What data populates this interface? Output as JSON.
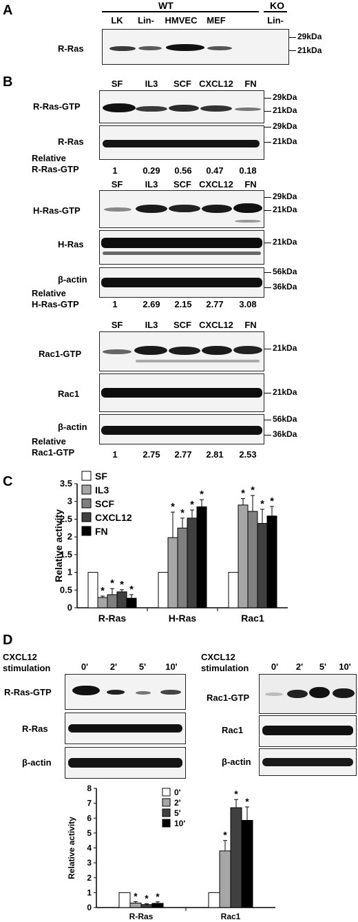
{
  "panel_a": {
    "letter": "A",
    "wt_label": "WT",
    "ko_label": "KO",
    "lanes": [
      "LK",
      "Lin-",
      "HMVEC",
      "MEF",
      "Lin-"
    ],
    "row_label": "R-Ras",
    "mw": [
      "29kDa",
      "21kDa"
    ]
  },
  "panel_b": {
    "letter": "B",
    "lanes": [
      "SF",
      "IL3",
      "SCF",
      "CXCL12",
      "FN"
    ],
    "block1": {
      "rows": [
        "R-Ras-GTP",
        "R-Ras"
      ],
      "mw_gtp": [
        "29kDa",
        "21kDa"
      ],
      "mw_total": [
        "29kDa",
        "21kDa"
      ],
      "relative_label_1": "Relative",
      "relative_label_2": "R-Ras-GTP",
      "values": [
        "1",
        "0.29",
        "0.56",
        "0.47",
        "0.18"
      ]
    },
    "block2": {
      "rows": [
        "H-Ras-GTP",
        "H-Ras",
        "β-actin"
      ],
      "mw_gtp": [
        "29kDa",
        "21kDa"
      ],
      "mw_total": [
        "21kDa"
      ],
      "mw_actin": [
        "56kDa",
        "36kDa"
      ],
      "relative_label_1": "Relative",
      "relative_label_2": "H-Ras-GTP",
      "values": [
        "1",
        "2.69",
        "2.15",
        "2.77",
        "3.08"
      ]
    },
    "block3": {
      "rows": [
        "Rac1-GTP",
        "Rac1",
        "β-actin"
      ],
      "mw_gtp": [
        "21kDa"
      ],
      "mw_total": [
        "21kDa"
      ],
      "mw_actin": [
        "56kDa",
        "36kDa"
      ],
      "relative_label_1": "Relative",
      "relative_label_2": "Rac1-GTP",
      "values": [
        "1",
        "2.75",
        "2.77",
        "2.81",
        "2.53"
      ]
    }
  },
  "panel_c": {
    "letter": "C"
  },
  "panel_d": {
    "letter": "D",
    "stim_label_1": "CXCL12",
    "stim_label_2": "stimulation",
    "times": [
      "0'",
      "2'",
      "5'",
      "10'"
    ],
    "left_rows": [
      "R-Ras-GTP",
      "R-Ras",
      "β-actin"
    ],
    "right_rows": [
      "Rac1-GTP",
      "Rac1",
      "β-actin"
    ]
  },
  "chart_data": [
    {
      "panel": "C",
      "type": "bar",
      "categories": [
        "R-Ras",
        "H-Ras",
        "Rac1"
      ],
      "ylabel": "Relative activity",
      "ylim": [
        0,
        3.5
      ],
      "yticks": [
        "0",
        "0.5",
        "1",
        "1.5",
        "2",
        "2.5",
        "3",
        "3.5"
      ],
      "legend_position": "top-left",
      "series": [
        {
          "name": "SF",
          "values": [
            1.0,
            1.0,
            1.0
          ],
          "errors": [
            0,
            0,
            0
          ],
          "color": "#ffffff"
        },
        {
          "name": "IL3",
          "values": [
            0.29,
            1.98,
            2.9
          ],
          "errors": [
            0.04,
            0.72,
            0.18
          ],
          "color": "#a6a6a6"
        },
        {
          "name": "SCF",
          "values": [
            0.37,
            2.25,
            2.72
          ],
          "errors": [
            0.17,
            0.28,
            0.45
          ],
          "color": "#7f7f7f"
        },
        {
          "name": "CXCL12",
          "values": [
            0.45,
            2.53,
            2.38
          ],
          "errors": [
            0.06,
            0.23,
            0.4
          ],
          "color": "#404040"
        },
        {
          "name": "FN",
          "values": [
            0.27,
            2.85,
            2.59
          ],
          "errors": [
            0.1,
            0.2,
            0.27
          ],
          "color": "#000000"
        }
      ],
      "annotations": [
        {
          "series": 1,
          "category": 0,
          "text": "*"
        },
        {
          "series": 2,
          "category": 0,
          "text": "*"
        },
        {
          "series": 3,
          "category": 0,
          "text": "*"
        },
        {
          "series": 4,
          "category": 0,
          "text": "*"
        },
        {
          "series": 1,
          "category": 1,
          "text": "*"
        },
        {
          "series": 2,
          "category": 1,
          "text": "*"
        },
        {
          "series": 3,
          "category": 1,
          "text": "*"
        },
        {
          "series": 4,
          "category": 1,
          "text": "*"
        },
        {
          "series": 1,
          "category": 2,
          "text": "*"
        },
        {
          "series": 2,
          "category": 2,
          "text": "*"
        },
        {
          "series": 3,
          "category": 2,
          "text": "*"
        },
        {
          "series": 4,
          "category": 2,
          "text": "*"
        }
      ]
    },
    {
      "panel": "D",
      "type": "bar",
      "categories": [
        "R-Ras",
        "Rac1"
      ],
      "ylabel": "Relative activity",
      "ylim": [
        0,
        8
      ],
      "yticks": [
        "0",
        "1",
        "2",
        "3",
        "4",
        "5",
        "6",
        "7",
        "8"
      ],
      "legend_position": "top-center",
      "series": [
        {
          "name": "0'",
          "values": [
            1.0,
            1.0
          ],
          "errors": [
            0,
            0
          ],
          "color": "#ffffff"
        },
        {
          "name": "2'",
          "values": [
            0.3,
            3.8
          ],
          "errors": [
            0.1,
            0.7
          ],
          "color": "#a6a6a6"
        },
        {
          "name": "5'",
          "values": [
            0.2,
            6.7
          ],
          "errors": [
            0.06,
            0.55
          ],
          "color": "#404040"
        },
        {
          "name": "10'",
          "values": [
            0.28,
            5.85
          ],
          "errors": [
            0.1,
            0.9
          ],
          "color": "#000000"
        }
      ],
      "annotations": [
        {
          "series": 1,
          "category": 0,
          "text": "*"
        },
        {
          "series": 2,
          "category": 0,
          "text": "*"
        },
        {
          "series": 3,
          "category": 0,
          "text": "*"
        },
        {
          "series": 1,
          "category": 1,
          "text": "*"
        },
        {
          "series": 2,
          "category": 1,
          "text": "*"
        },
        {
          "series": 3,
          "category": 1,
          "text": "*"
        }
      ]
    }
  ]
}
